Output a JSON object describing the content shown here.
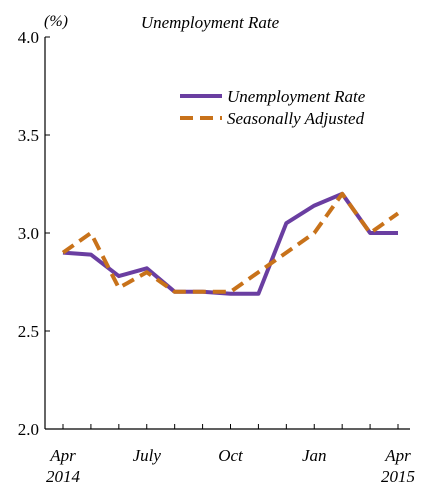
{
  "chart_data": {
    "type": "line",
    "title": "Unemployment Rate",
    "unit_label": "(%)",
    "ylim": [
      2.0,
      4.0
    ],
    "yticks": [
      "2.0",
      "2.5",
      "3.0",
      "3.5",
      "4.0"
    ],
    "months": [
      "Apr 2014",
      "May 2014",
      "Jun 2014",
      "Jul 2014",
      "Aug 2014",
      "Sep 2014",
      "Oct 2014",
      "Nov 2014",
      "Dec 2014",
      "Jan 2015",
      "Feb 2015",
      "Mar 2015",
      "Apr 2015"
    ],
    "xticks": [
      {
        "month": "Apr 2014",
        "label": "Apr",
        "sublabel": "2014"
      },
      {
        "month": "Jul 2014",
        "label": "July",
        "sublabel": ""
      },
      {
        "month": "Oct 2014",
        "label": "Oct",
        "sublabel": ""
      },
      {
        "month": "Jan 2015",
        "label": "Jan",
        "sublabel": ""
      },
      {
        "month": "Apr 2015",
        "label": "Apr",
        "sublabel": "2015"
      }
    ],
    "series": [
      {
        "name": "Unemployment Rate",
        "color": "#6a3ea1",
        "style": "solid",
        "values": [
          2.9,
          2.89,
          2.78,
          2.82,
          2.7,
          2.7,
          2.69,
          2.69,
          3.05,
          3.14,
          3.2,
          3.0,
          3.0
        ]
      },
      {
        "name": "Seasonally Adjusted",
        "color": "#c8721a",
        "style": "dashed",
        "values": [
          2.9,
          3.0,
          2.72,
          2.8,
          2.7,
          2.7,
          2.7,
          2.8,
          2.9,
          3.0,
          3.2,
          3.0,
          3.1
        ]
      }
    ],
    "grid": false,
    "legend_position": "top-right"
  }
}
